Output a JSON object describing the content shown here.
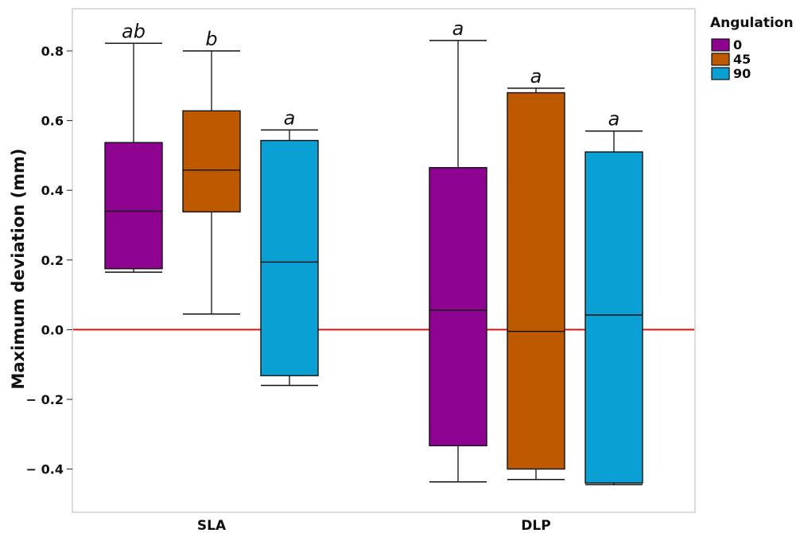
{
  "chart_data": {
    "type": "box",
    "title": "",
    "xlabel": "",
    "ylabel": "Maximum deviation (mm)",
    "ylim": [
      -0.53,
      0.92
    ],
    "yticks": [
      0.8,
      0.6,
      0.4,
      0.2,
      0.0,
      -0.2,
      -0.4
    ],
    "ytick_labels": [
      "0.8",
      "0.6",
      "0.4",
      "0.2",
      "0.0",
      "− 0.2",
      "− 0.4"
    ],
    "categories": [
      "SLA",
      "DLP"
    ],
    "legend": {
      "title": "Angulation",
      "position": "top-right",
      "items": [
        {
          "label": "0",
          "color": "#8e038f"
        },
        {
          "label": "45",
          "color": "#bd5a00"
        },
        {
          "label": "90",
          "color": "#0aa0d3"
        }
      ]
    },
    "reference_line": {
      "y": 0.0,
      "color": "#e01010"
    },
    "boxes": [
      {
        "category": "SLA",
        "group": "0",
        "whisker_low": 0.165,
        "q1": 0.175,
        "median": 0.34,
        "q3": 0.537,
        "whisker_high": 0.822,
        "sig": "ab"
      },
      {
        "category": "SLA",
        "group": "45",
        "whisker_low": 0.045,
        "q1": 0.338,
        "median": 0.458,
        "q3": 0.628,
        "whisker_high": 0.8,
        "sig": "b"
      },
      {
        "category": "SLA",
        "group": "90",
        "whisker_low": -0.16,
        "q1": -0.132,
        "median": 0.194,
        "q3": 0.543,
        "whisker_high": 0.573,
        "sig": "a"
      },
      {
        "category": "DLP",
        "group": "0",
        "whisker_low": -0.437,
        "q1": -0.333,
        "median": 0.056,
        "q3": 0.465,
        "whisker_high": 0.83,
        "sig": "a"
      },
      {
        "category": "DLP",
        "group": "45",
        "whisker_low": -0.43,
        "q1": -0.4,
        "median": -0.005,
        "q3": 0.68,
        "whisker_high": 0.693,
        "sig": "a"
      },
      {
        "category": "DLP",
        "group": "90",
        "whisker_low": -0.445,
        "q1": -0.44,
        "median": 0.042,
        "q3": 0.51,
        "whisker_high": 0.57,
        "sig": "a"
      }
    ]
  }
}
